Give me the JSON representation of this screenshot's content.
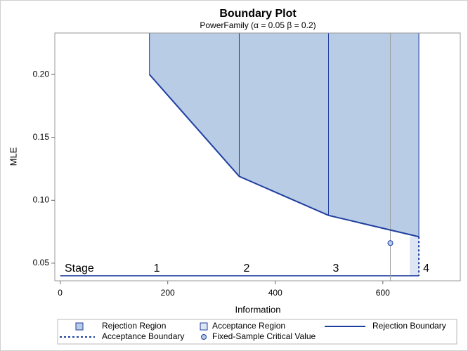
{
  "chart_data": {
    "type": "boundary",
    "title": "Boundary Plot",
    "subtitle": "PowerFamily (α = 0.05  β = 0.2)",
    "xlabel": "Information",
    "ylabel": "MLE",
    "xlim": [
      -10,
      744
    ],
    "ylim": [
      0.036,
      0.233
    ],
    "xticks": [
      0,
      200,
      400,
      600
    ],
    "yticks": [
      0.05,
      {
        "value": 0.1,
        "label": "0.10"
      },
      0.15,
      {
        "value": 0.2,
        "label": "0.20"
      }
    ],
    "stages": {
      "label": "Stage",
      "names": [
        "1",
        "2",
        "3",
        "4"
      ],
      "information": [
        166,
        333,
        499,
        667
      ],
      "level": 0.04
    },
    "rejection_boundary": {
      "name": "Rejection Boundary",
      "color": "#1f3f9f",
      "x": [
        166,
        333,
        499,
        667
      ],
      "values": [
        0.2,
        0.119,
        0.088,
        0.071
      ]
    },
    "rejection_region": {
      "name": "Rejection Region",
      "color": "#b8cce6"
    },
    "acceptance_region": {
      "name": "Acceptance Region",
      "color": "#dde6f2",
      "x": [
        650,
        667
      ]
    },
    "acceptance_boundary": {
      "name": "Acceptance Boundary",
      "color": "#1f3f9f",
      "x": [
        667,
        667
      ],
      "values": [
        0.071,
        0.04
      ]
    },
    "fixed_sample": {
      "name": "Fixed-Sample Critical Value",
      "information": 614,
      "critical_value": 0.066,
      "color": "#1f3f9f",
      "reference_color": "#a0a0a0"
    }
  }
}
